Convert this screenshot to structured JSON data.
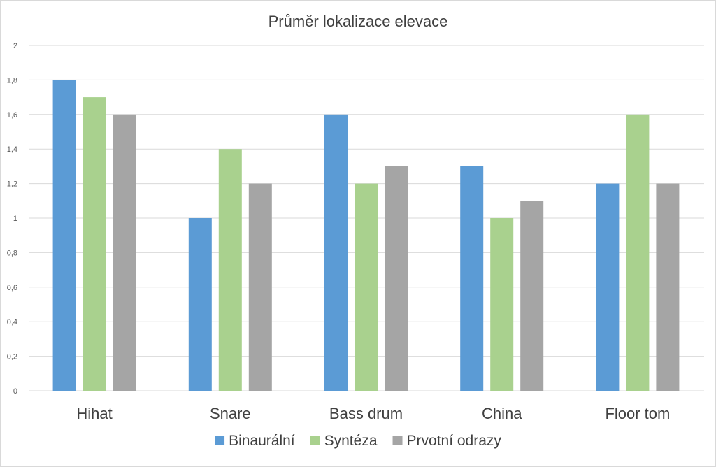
{
  "chart_data": {
    "type": "bar",
    "title": "Průměr lokalizace elevace",
    "categories": [
      "Hihat",
      "Snare",
      "Bass drum",
      "China",
      "Floor tom"
    ],
    "series": [
      {
        "name": "Binaurální",
        "color": "#5b9bd5",
        "values": [
          1.8,
          1.0,
          1.6,
          1.3,
          1.2
        ]
      },
      {
        "name": "Syntéza",
        "color": "#a9d18e",
        "values": [
          1.7,
          1.4,
          1.2,
          1.0,
          1.6
        ]
      },
      {
        "name": "Prvotní odrazy",
        "color": "#a5a5a5",
        "values": [
          1.6,
          1.2,
          1.3,
          1.1,
          1.2
        ]
      }
    ],
    "yticks": [
      "0",
      "0,2",
      "0,4",
      "0,6",
      "0,8",
      "1",
      "1,2",
      "1,4",
      "1,6",
      "1,8",
      "2"
    ],
    "ylim": [
      0,
      2
    ],
    "grid": true,
    "legend": "bottom"
  }
}
